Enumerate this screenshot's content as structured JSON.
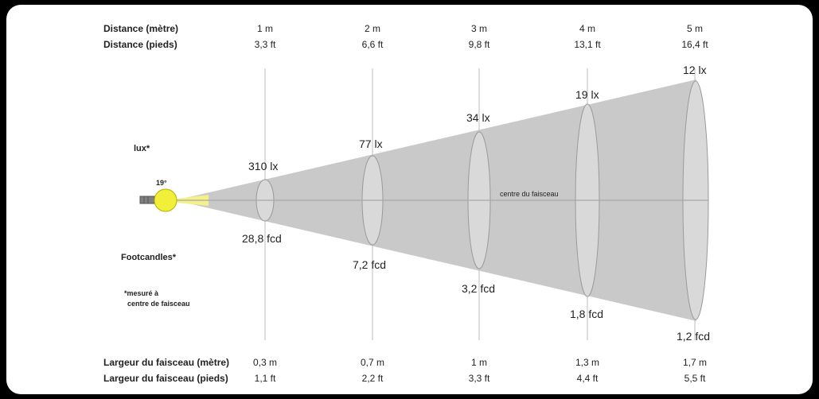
{
  "header": {
    "distance_m_label": "Distance (mètre)",
    "distance_ft_label": "Distance (pieds)",
    "distances_m": [
      "1 m",
      "2 m",
      "3 m",
      "4 m",
      "5 m"
    ],
    "distances_ft": [
      "3,3 ft",
      "6,6 ft",
      "9,8 ft",
      "13,1 ft",
      "16,4 ft"
    ]
  },
  "left": {
    "lux_label": "lux*",
    "footcandles_label": "Footcandles*",
    "angle_label": "19°",
    "note_line1": "*mesuré à",
    "note_line2": "centre de faisceau"
  },
  "beam": {
    "center_label": "centre du faisceau",
    "lux_values": [
      "310 lx",
      "77 lx",
      "34 lx",
      "19 lx",
      "12 lx"
    ],
    "fcd_values": [
      "28,8 fcd",
      "7,2 fcd",
      "3,2 fcd",
      "1,8 fcd",
      "1,2 fcd"
    ]
  },
  "footer": {
    "width_m_label": "Largeur du faisceau (mètre)",
    "width_ft_label": "Largeur du faisceau (pieds)",
    "widths_m": [
      "0,3 m",
      "0,7 m",
      "1 m",
      "1,3 m",
      "1,7 m"
    ],
    "widths_ft": [
      "1,1 ft",
      "2,2 ft",
      "3,3 ft",
      "4,4 ft",
      "5,5 ft"
    ]
  },
  "colors": {
    "cone": "#c9c9c9",
    "ellipse": "#d9d9d9",
    "lamp": "#f2ef3a",
    "beam_start": "#f4f08a",
    "grid": "#bdbdbd"
  }
}
